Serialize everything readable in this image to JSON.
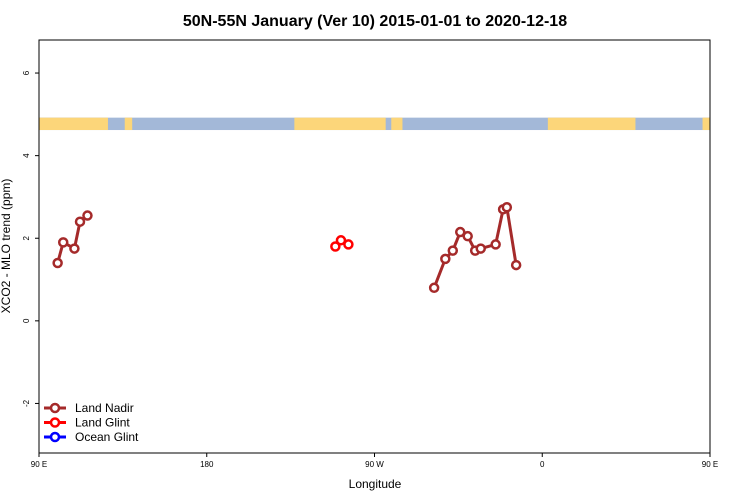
{
  "chart_data": {
    "type": "line",
    "title": "50N-55N January (Ver 10)   2015-01-01 to 2020-12-18",
    "xlabel": "Longitude",
    "ylabel": "XCO2 - MLO trend (ppm)",
    "xlim": [
      90,
      450
    ],
    "ylim": [
      -3.2,
      6.8
    ],
    "x_ticks": [
      {
        "value": 90,
        "label": "90 E"
      },
      {
        "value": 180,
        "label": "180"
      },
      {
        "value": 270,
        "label": "90 W"
      },
      {
        "value": 360,
        "label": "0"
      },
      {
        "value": 450,
        "label": "90 E"
      },
      {
        "value": 540,
        "label": "180"
      }
    ],
    "x_ticks_note": "",
    "y_ticks": [
      {
        "value": -2,
        "label": "-2"
      },
      {
        "value": 0,
        "label": "0"
      },
      {
        "value": 2,
        "label": "2"
      },
      {
        "value": 4,
        "label": "4"
      },
      {
        "value": 6,
        "label": "6"
      }
    ],
    "land_mask_band": {
      "y_range": [
        4.62,
        4.92
      ],
      "land_color": "#fcd67a",
      "ocean_color": "#a3b8d8",
      "land_segments": [
        [
          90,
          127
        ],
        [
          136,
          140
        ],
        [
          227,
          276
        ],
        [
          279,
          285
        ],
        [
          363,
          410
        ],
        [
          446,
          450
        ]
      ],
      "continues_repeat": true
    },
    "legend": {
      "placement": "bottom-left",
      "entries": [
        {
          "name": "Land Nadir",
          "color": "#a52a2a"
        },
        {
          "name": "Land Glint",
          "color": "#ff0000"
        },
        {
          "name": "Ocean Glint",
          "color": "#0000ff"
        }
      ]
    },
    "series": [
      {
        "name": "Land Nadir",
        "color": "#a52a2a",
        "segments": [
          [
            [
              100,
              1.4
            ],
            [
              103,
              1.9
            ],
            [
              109,
              1.75
            ],
            [
              112,
              2.4
            ],
            [
              116,
              2.55
            ]
          ],
          [
            [
              302,
              0.8
            ],
            [
              308,
              1.5
            ],
            [
              312,
              1.7
            ],
            [
              316,
              2.15
            ],
            [
              320,
              2.05
            ],
            [
              324,
              1.7
            ],
            [
              327,
              1.75
            ],
            [
              335,
              1.85
            ],
            [
              339,
              2.7
            ],
            [
              341,
              2.75
            ],
            [
              346,
              1.35
            ]
          ],
          [
            [
              460,
              1.4
            ],
            [
              463,
              1.9
            ],
            [
              469,
              1.75
            ],
            [
              472,
              2.4
            ],
            [
              476,
              2.55
            ]
          ]
        ]
      },
      {
        "name": "Land Glint",
        "color": "#ff0000",
        "segments": [
          [
            [
              249,
              1.8
            ]
          ],
          [
            [
              252,
              1.95
            ]
          ],
          [
            [
              256,
              1.85
            ]
          ]
        ]
      },
      {
        "name": "Ocean Glint",
        "color": "#0000ff",
        "segments": []
      }
    ]
  }
}
